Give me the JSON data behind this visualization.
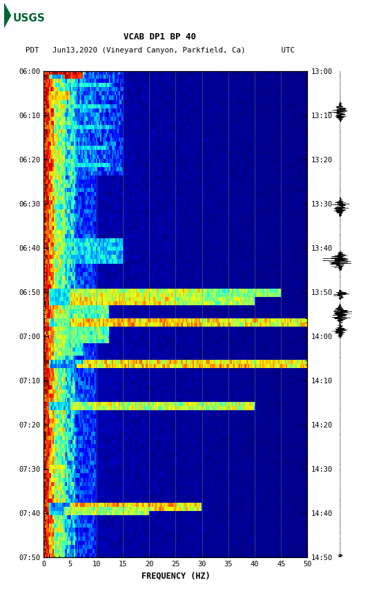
{
  "title_line1": "VCAB DP1 BP 40",
  "title_line2": "PDT   Jun13,2020 (Vineyard Canyon, Parkfield, Ca)        UTC",
  "xlabel": "FREQUENCY (HZ)",
  "left_yticks": [
    "06:00",
    "06:10",
    "06:20",
    "06:30",
    "06:40",
    "06:50",
    "07:00",
    "07:10",
    "07:20",
    "07:30",
    "07:40",
    "07:50"
  ],
  "right_yticks": [
    "13:00",
    "13:10",
    "13:20",
    "13:30",
    "13:40",
    "13:50",
    "14:00",
    "14:10",
    "14:20",
    "14:30",
    "14:40",
    "14:50"
  ],
  "xticks": [
    0,
    5,
    10,
    15,
    20,
    25,
    30,
    35,
    40,
    45,
    50
  ],
  "freq_min": 0,
  "freq_max": 50,
  "bg_color": "#ffffff",
  "colormap": "jet",
  "vgrid_color": "#888888",
  "vgrid_alpha": 0.6,
  "seismogram_color": "#000000",
  "logo_color": "#006633"
}
